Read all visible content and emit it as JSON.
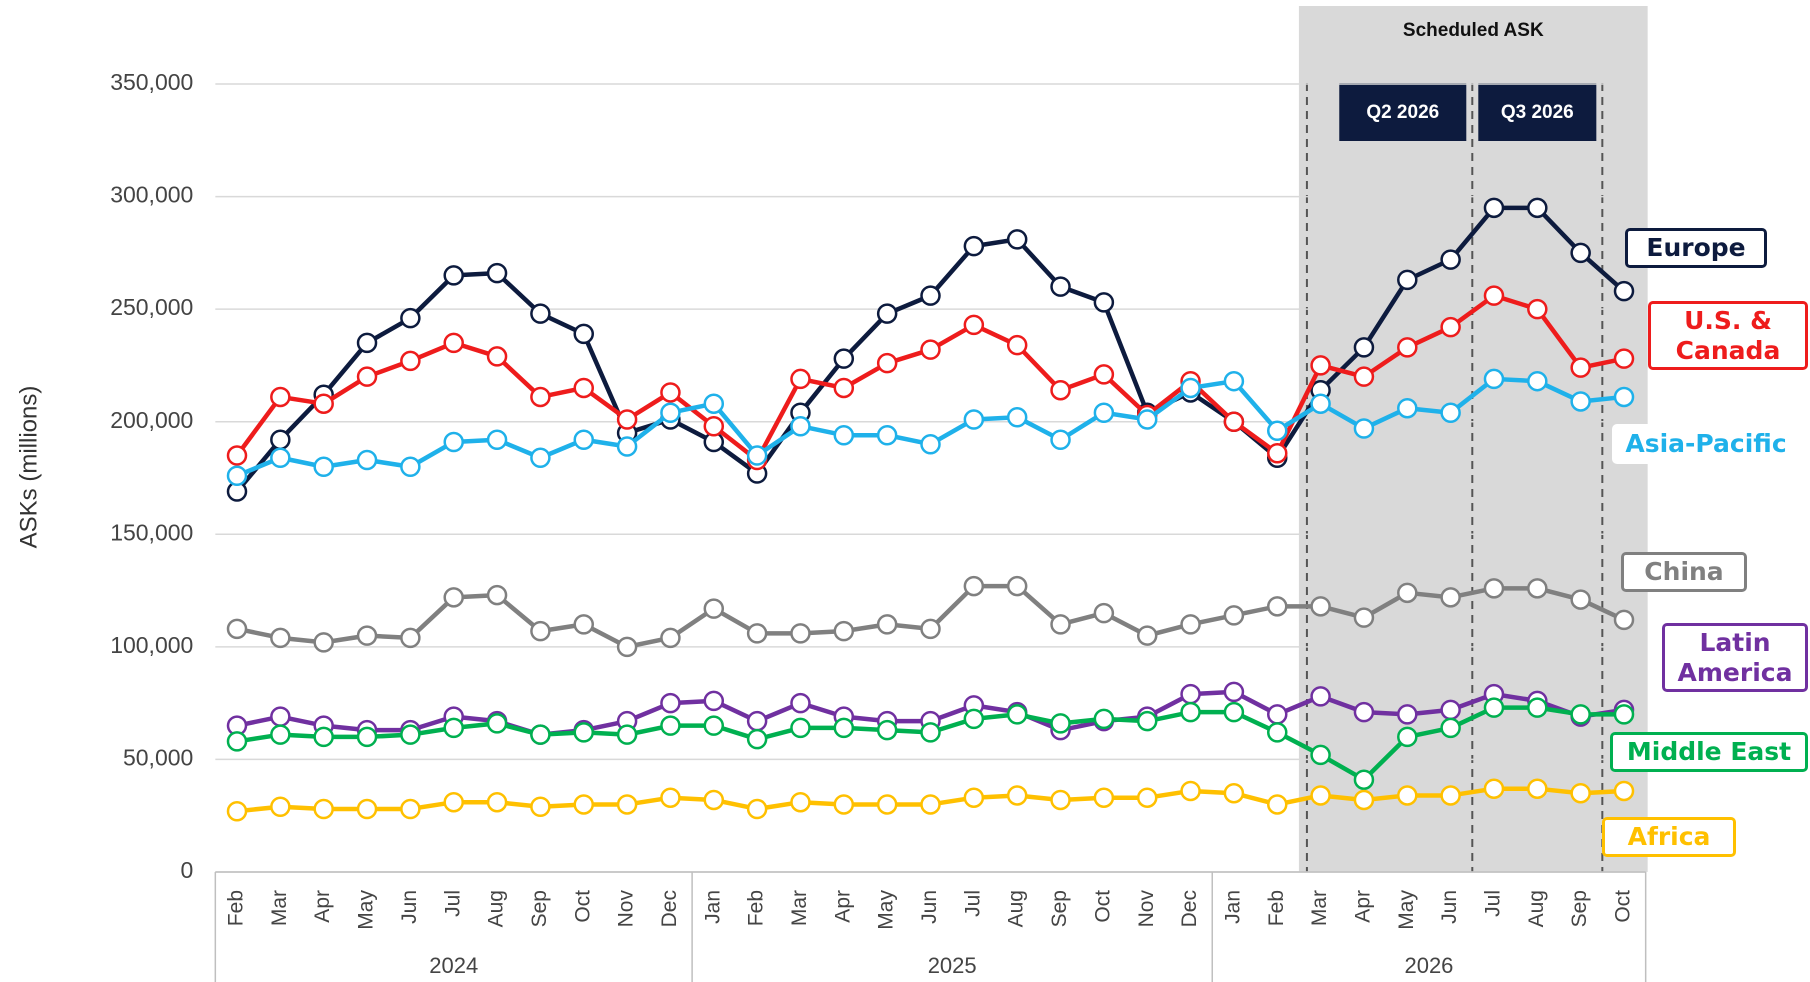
{
  "chart_data": {
    "type": "line",
    "y_label": "ASKs (millions)",
    "category_groups": [
      {
        "label": "2024",
        "categories": [
          "Feb",
          "Mar",
          "Apr",
          "May",
          "Jun",
          "Jul",
          "Aug",
          "Sep",
          "Oct",
          "Nov",
          "Dec"
        ]
      },
      {
        "label": "2025",
        "categories": [
          "Jan",
          "Feb",
          "Mar",
          "Apr",
          "May",
          "Jun",
          "Jul",
          "Aug",
          "Sep",
          "Oct",
          "Nov",
          "Dec"
        ]
      },
      {
        "label": "2026",
        "categories": [
          "Jan",
          "Feb",
          "Mar",
          "Apr",
          "May",
          "Jun",
          "Jul",
          "Aug",
          "Sep",
          "Oct"
        ]
      }
    ],
    "ylim": [
      0,
      350000
    ],
    "yticks": [
      0,
      {
        "value": 50000,
        "label": "50,000"
      },
      {
        "value": 100000,
        "label": "100,000"
      },
      {
        "value": 150000,
        "label": "150,000"
      },
      {
        "value": 200000,
        "label": "200,000"
      },
      {
        "value": 250000,
        "label": "250,000"
      },
      {
        "value": 300000,
        "label": "300,000"
      },
      {
        "value": 350000,
        "label": "350,000"
      }
    ],
    "grid": true,
    "shaded_region": {
      "label": "Scheduled ASK",
      "quarters": [
        "Q2 2026",
        "Q3 2026"
      ]
    },
    "series": [
      {
        "name": "Europe",
        "color": "#0d1b3e",
        "values": [
          169000,
          192000,
          212000,
          235000,
          246000,
          265000,
          266000,
          248000,
          239000,
          195000,
          201000,
          191000,
          177000,
          204000,
          228000,
          248000,
          256000,
          278000,
          281000,
          260000,
          253000,
          204000,
          213000,
          200000,
          184000,
          214000,
          233000,
          263000,
          272000,
          295000,
          295000,
          275000,
          258000
        ]
      },
      {
        "name": "U.S. & Canada",
        "color": "#ee1c1c",
        "values": [
          185000,
          211000,
          208000,
          220000,
          227000,
          235000,
          229000,
          211000,
          215000,
          201000,
          213000,
          198000,
          183000,
          219000,
          215000,
          226000,
          232000,
          243000,
          234000,
          214000,
          221000,
          203000,
          218000,
          200000,
          186000,
          225000,
          220000,
          233000,
          242000,
          256000,
          250000,
          224000,
          228000
        ]
      },
      {
        "name": "Asia-Pacific",
        "color": "#1fb1ea",
        "values": [
          176000,
          184000,
          180000,
          183000,
          180000,
          191000,
          192000,
          184000,
          192000,
          189000,
          204000,
          208000,
          185000,
          198000,
          194000,
          194000,
          190000,
          201000,
          202000,
          192000,
          204000,
          201000,
          215000,
          218000,
          196000,
          208000,
          197000,
          206000,
          204000,
          219000,
          218000,
          209000,
          211000
        ]
      },
      {
        "name": "China",
        "color": "#808080",
        "values": [
          108000,
          104000,
          102000,
          105000,
          104000,
          122000,
          123000,
          107000,
          110000,
          100000,
          104000,
          117000,
          106000,
          106000,
          107000,
          110000,
          108000,
          127000,
          127000,
          110000,
          115000,
          105000,
          110000,
          114000,
          118000,
          118000,
          113000,
          124000,
          122000,
          126000,
          126000,
          121000,
          112000
        ]
      },
      {
        "name": "Latin America",
        "color": "#7030a0",
        "values": [
          65000,
          69000,
          65000,
          63000,
          63000,
          69000,
          67000,
          61000,
          63000,
          67000,
          75000,
          76000,
          67000,
          75000,
          69000,
          67000,
          67000,
          74000,
          71000,
          63000,
          67000,
          69000,
          79000,
          80000,
          70000,
          78000,
          71000,
          70000,
          72000,
          79000,
          76000,
          69000,
          72000
        ]
      },
      {
        "name": "Middle East",
        "color": "#00b050",
        "values": [
          58000,
          61000,
          60000,
          60000,
          61000,
          64000,
          66000,
          61000,
          62000,
          61000,
          65000,
          65000,
          59000,
          64000,
          64000,
          63000,
          62000,
          68000,
          70000,
          66000,
          68000,
          67000,
          71000,
          71000,
          62000,
          52000,
          41000,
          60000,
          64000,
          73000,
          73000,
          70000,
          70000
        ]
      },
      {
        "name": "Africa",
        "color": "#ffc000",
        "values": [
          27000,
          29000,
          28000,
          28000,
          28000,
          31000,
          31000,
          29000,
          30000,
          30000,
          33000,
          32000,
          28000,
          31000,
          30000,
          30000,
          30000,
          33000,
          34000,
          32000,
          33000,
          33000,
          36000,
          35000,
          30000,
          34000,
          32000,
          34000,
          34000,
          37000,
          37000,
          35000,
          36000
        ]
      }
    ]
  }
}
